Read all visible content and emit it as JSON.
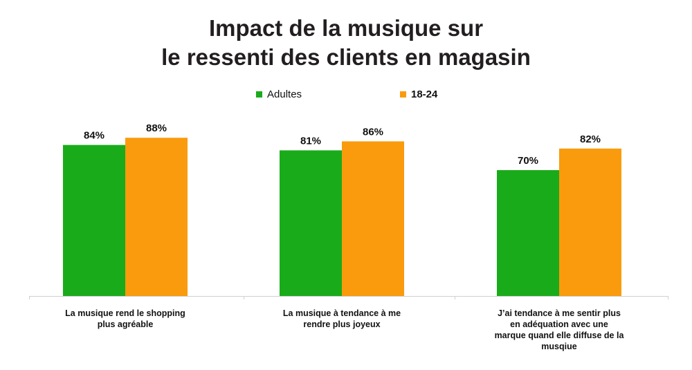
{
  "chart_data": {
    "type": "bar",
    "title_lines": [
      "Impact de la musique sur",
      "le ressenti des clients en magasin"
    ],
    "categories": [
      "La musique rend le shopping plus agréable",
      "La musique à tendance à me rendre plus joyeux",
      "J’ai tendance à me sentir plus en adéquation avec une marque quand elle diffuse de la musqiue"
    ],
    "category_label_lines": [
      [
        "La musique rend le shopping",
        "plus agréable"
      ],
      [
        "La musique à tendance à me",
        "rendre plus joyeux"
      ],
      [
        "J’ai tendance à me sentir plus",
        "en adéquation avec une",
        "marque quand elle diffuse de la",
        "musqiue"
      ]
    ],
    "series": [
      {
        "name": "Adultes",
        "values": [
          84,
          81,
          70
        ],
        "labels": [
          "84%",
          "81%",
          "70%"
        ],
        "color": "#1aab1a"
      },
      {
        "name": "18-24",
        "values": [
          88,
          86,
          82
        ],
        "labels": [
          "88%",
          "86%",
          "82%"
        ],
        "color": "#f99b0d"
      }
    ],
    "ylim": [
      0,
      100
    ],
    "grid": false,
    "legend_position": "top-center",
    "xlabel": "",
    "ylabel": ""
  }
}
